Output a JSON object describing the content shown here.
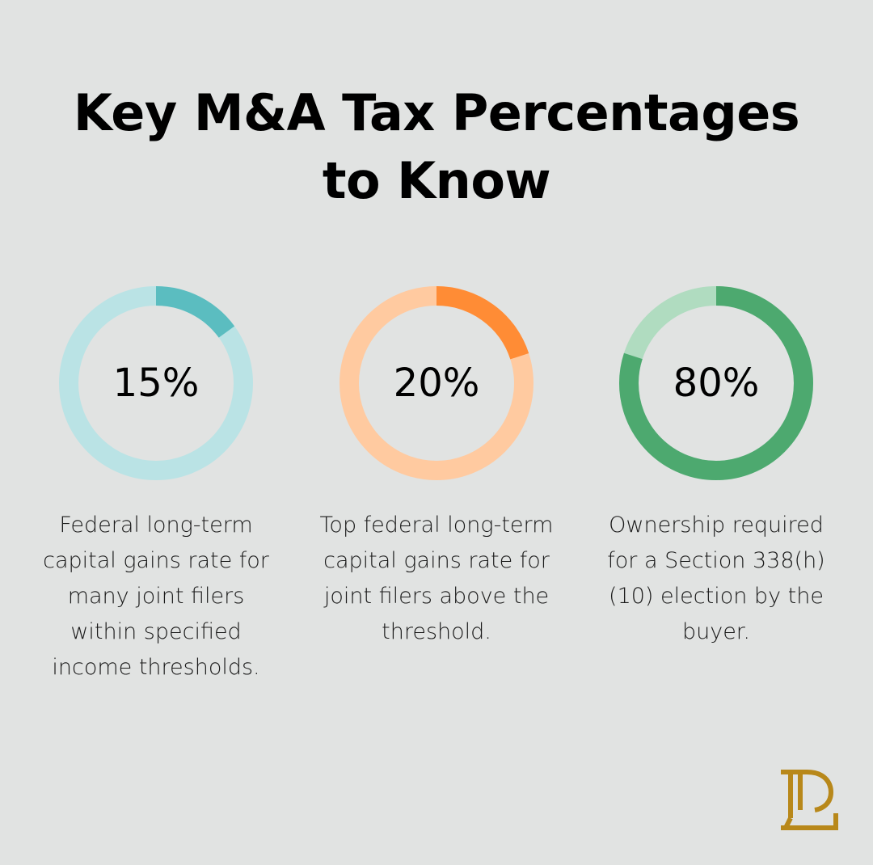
{
  "title": "Key M&A Tax Percentages to Know",
  "title_lines": [
    "Key M&A Tax Percentages",
    "to Know"
  ],
  "stats": [
    {
      "value": 15,
      "label": "15%",
      "description": "Federal long-term capital gains rate for many joint filers within specified income thresholds.",
      "color": "#5bbdc0",
      "track_color": "#bae3e5"
    },
    {
      "value": 20,
      "label": "20%",
      "description": "Top federal long-term capital gains rate for joint filers above the threshold.",
      "color": "#ff8c35",
      "track_color": "#ffcaa0"
    },
    {
      "value": 80,
      "label": "80%",
      "description": "Ownership required for a Section 338(h)(10) election by the buyer.",
      "color": "#4da96f",
      "track_color": "#b0dcc0"
    }
  ],
  "logo": {
    "icon": "bp-monogram-logo",
    "color": "#b8881a"
  },
  "chart_data": {
    "type": "donut",
    "title": "Key M&A Tax Percentages to Know",
    "categories": [
      "Federal long-term capital gains rate (many joint filers)",
      "Top federal long-term capital gains rate (joint filers above threshold)",
      "Ownership required for Section 338(h)(10) election"
    ],
    "values": [
      15,
      20,
      80
    ],
    "unit": "%",
    "max": 100
  }
}
